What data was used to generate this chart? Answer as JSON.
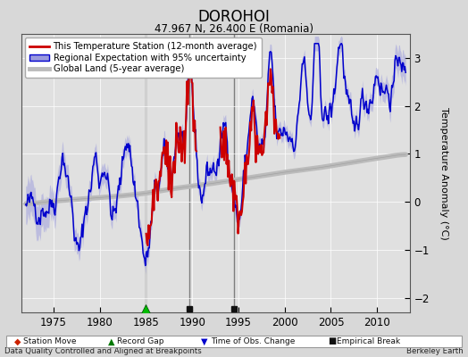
{
  "title": "DOROHOI",
  "subtitle": "47.967 N, 26.400 E (Romania)",
  "ylabel": "Temperature Anomaly (°C)",
  "xlabel_note": "Data Quality Controlled and Aligned at Breakpoints",
  "source_note": "Berkeley Earth",
  "xlim": [
    1971.5,
    2013.5
  ],
  "ylim": [
    -2.3,
    3.5
  ],
  "yticks": [
    -2,
    -1,
    0,
    1,
    2,
    3
  ],
  "xticks": [
    1975,
    1980,
    1985,
    1990,
    1995,
    2000,
    2005,
    2010
  ],
  "bg_color": "#d8d8d8",
  "plot_bg_color": "#e0e0e0",
  "red_color": "#cc0000",
  "blue_color": "#0000cc",
  "blue_fill_color": "#9999dd",
  "gray_color": "#bbbbbb",
  "gray_edge_color": "#888888",
  "vertical_line_color": "#666666",
  "vertical_lines": [
    1985.0,
    1989.7,
    1994.5
  ],
  "marker_green_x": 1985.0,
  "marker_black1_x": 1989.7,
  "marker_black2_x": 1994.5,
  "legend_labels": [
    "This Temperature Station (12-month average)",
    "Regional Expectation with 95% uncertainty",
    "Global Land (5-year average)"
  ],
  "t_start": 1972.0,
  "t_end": 2013.083,
  "red_start": 1985.0,
  "red_gap_start": 1990.5,
  "red_gap_end": 1993.0,
  "red_end": 1999.5
}
